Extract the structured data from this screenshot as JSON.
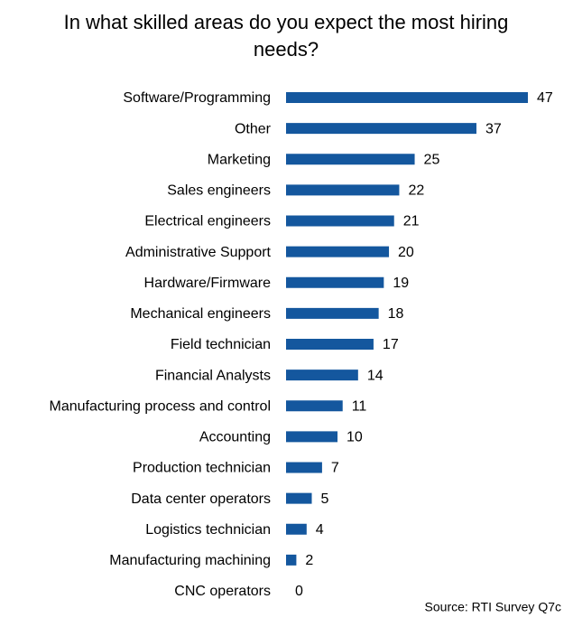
{
  "chart_data": {
    "type": "bar",
    "orientation": "horizontal",
    "title": "In what skilled areas do you expect the most hiring needs?",
    "categories": [
      "Software/Programming",
      "Other",
      "Marketing",
      "Sales engineers",
      "Electrical engineers",
      "Administrative Support",
      "Hardware/Firmware",
      "Mechanical engineers",
      "Field technician",
      "Financial Analysts",
      "Manufacturing process and control",
      "Accounting",
      "Production technician",
      "Data center operators",
      "Logistics technician",
      "Manufacturing machining",
      "CNC operators"
    ],
    "values": [
      47,
      37,
      25,
      22,
      21,
      20,
      19,
      18,
      17,
      14,
      11,
      10,
      7,
      5,
      4,
      2,
      0
    ],
    "color": "#14579e",
    "source": "Source: RTI Survey Q7c"
  }
}
